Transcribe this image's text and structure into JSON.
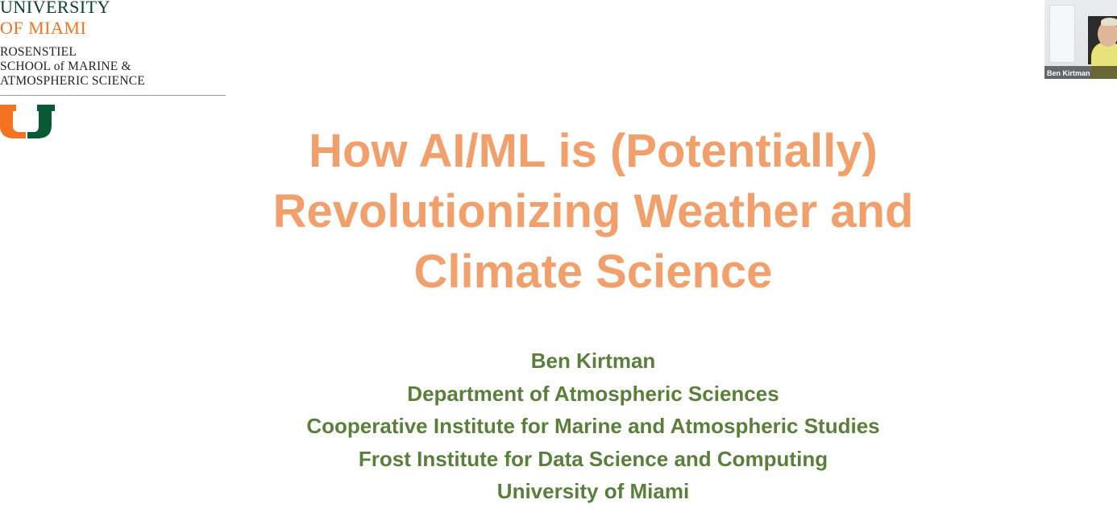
{
  "logo": {
    "university_line1": "UNIVERSITY",
    "university_line2": "OF MIAMI",
    "school_lines": [
      "ROSENSTIEL",
      "SCHOOL of MARINE &",
      "ATMOSPHERIC SCIENCE"
    ],
    "colors": {
      "orange": "#f47321",
      "green": "#0b3f2a"
    },
    "icon": "u-logo-icon"
  },
  "slide": {
    "title_lines": [
      "How AI/ML is (Potentially)",
      "Revolutionizing Weather and",
      "Climate Science"
    ],
    "title_color": "#f2a06b",
    "author_lines": [
      "Ben Kirtman",
      "Department of Atmospheric Sciences",
      "Cooperative Institute for Marine and Atmospheric Studies",
      "Frost Institute for Data Science and Computing",
      "University of Miami"
    ],
    "author_color": "#5a7f3a"
  },
  "video": {
    "participant_name": "Ben Kirtman"
  }
}
